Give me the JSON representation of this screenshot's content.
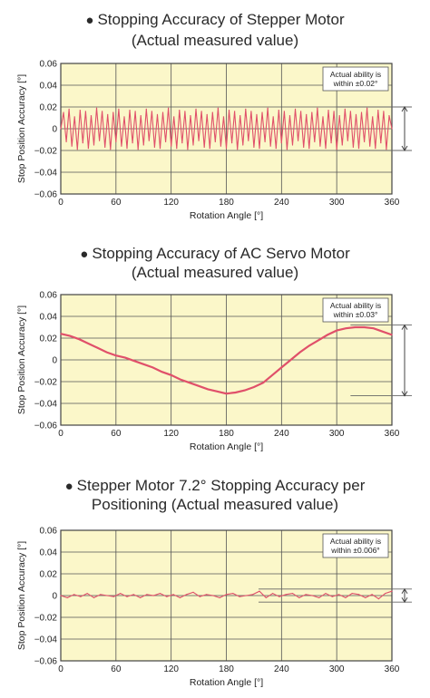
{
  "charts": [
    {
      "title_line1": "Stopping Accuracy of Stepper Motor",
      "title_line2": "(Actual measured value)",
      "annotation_line1": "Actual ability is",
      "annotation_line2": "within ±0.02°"
    },
    {
      "title_line1": "Stopping Accuracy of AC Servo Motor",
      "title_line2": "(Actual measured value)",
      "annotation_line1": "Actual ability is",
      "annotation_line2": "within ±0.03°"
    },
    {
      "title_line1": "Stepper Motor 7.2° Stopping Accuracy per",
      "title_line2": "Positioning (Actual measured value)",
      "annotation_line1": "Actual ability is",
      "annotation_line2": "within ±0.006°"
    }
  ],
  "chart_data": [
    {
      "type": "line",
      "xlabel": "Rotation Angle [°]",
      "ylabel": "Stop Position Accuracy [°]",
      "xlim": [
        0,
        360
      ],
      "ylim": [
        -0.06,
        0.06
      ],
      "xticks": [
        "0",
        "60",
        "120",
        "180",
        "240",
        "300",
        "360"
      ],
      "yticks": [
        "0.06",
        "0.04",
        "0.02",
        "0",
        "−0.02",
        "−0.04",
        "−0.06"
      ],
      "band": [
        -0.02,
        0.02
      ],
      "series": [
        {
          "color": "#e0506a",
          "x": [
            0,
            3,
            6,
            9,
            12,
            15,
            18,
            21,
            24,
            27,
            30,
            33,
            36,
            39,
            42,
            45,
            48,
            51,
            54,
            57,
            60,
            63,
            66,
            69,
            72,
            75,
            78,
            81,
            84,
            87,
            90,
            93,
            96,
            99,
            102,
            105,
            108,
            111,
            114,
            117,
            120,
            123,
            126,
            129,
            132,
            135,
            138,
            141,
            144,
            147,
            150,
            153,
            156,
            159,
            162,
            165,
            168,
            171,
            174,
            177,
            180,
            183,
            186,
            189,
            192,
            195,
            198,
            201,
            204,
            207,
            210,
            213,
            216,
            219,
            222,
            225,
            228,
            231,
            234,
            237,
            240,
            243,
            246,
            249,
            252,
            255,
            258,
            261,
            264,
            267,
            270,
            273,
            276,
            279,
            282,
            285,
            288,
            291,
            294,
            297,
            300,
            303,
            306,
            309,
            312,
            315,
            318,
            321,
            324,
            327,
            330,
            333,
            336,
            339,
            342,
            345,
            348,
            351,
            354,
            357,
            360
          ],
          "y": [
            0.0,
            0.015,
            -0.012,
            0.018,
            -0.016,
            0.011,
            -0.019,
            0.017,
            -0.013,
            0.016,
            -0.018,
            0.012,
            -0.015,
            0.019,
            -0.011,
            0.016,
            -0.017,
            0.013,
            -0.019,
            0.015,
            -0.012,
            0.018,
            -0.016,
            0.011,
            -0.018,
            0.017,
            -0.013,
            0.016,
            -0.019,
            0.012,
            -0.015,
            0.018,
            -0.011,
            0.016,
            -0.017,
            0.013,
            -0.018,
            0.015,
            -0.012,
            0.019,
            -0.016,
            0.011,
            -0.018,
            0.017,
            -0.013,
            0.016,
            -0.019,
            0.012,
            -0.015,
            0.018,
            -0.011,
            0.016,
            -0.017,
            0.013,
            -0.018,
            0.015,
            -0.012,
            0.019,
            -0.016,
            0.011,
            -0.018,
            0.017,
            -0.013,
            0.016,
            -0.019,
            0.012,
            -0.015,
            0.018,
            -0.011,
            0.016,
            -0.017,
            0.013,
            -0.018,
            0.015,
            -0.012,
            0.019,
            -0.016,
            0.011,
            -0.018,
            0.017,
            -0.013,
            0.016,
            -0.019,
            0.012,
            -0.015,
            0.018,
            -0.011,
            0.016,
            -0.017,
            0.013,
            -0.018,
            0.015,
            -0.012,
            0.019,
            -0.016,
            0.011,
            -0.018,
            0.017,
            -0.013,
            0.016,
            -0.019,
            0.012,
            -0.015,
            0.018,
            -0.011,
            0.016,
            -0.017,
            0.013,
            -0.018,
            0.015,
            -0.012,
            0.019,
            -0.016,
            0.011,
            -0.018,
            0.017,
            -0.013,
            0.016,
            -0.019,
            0.012,
            0.0
          ]
        }
      ]
    },
    {
      "type": "line",
      "xlabel": "Rotation Angle [°]",
      "ylabel": "Stop Position Accuracy [°]",
      "xlim": [
        0,
        360
      ],
      "ylim": [
        -0.06,
        0.06
      ],
      "xticks": [
        "0",
        "60",
        "120",
        "180",
        "240",
        "300",
        "360"
      ],
      "yticks": [
        "0.06",
        "0.04",
        "0.02",
        "0",
        "−0.02",
        "−0.04",
        "−0.06"
      ],
      "band": [
        -0.033,
        0.032
      ],
      "series": [
        {
          "color": "#e0506a",
          "x": [
            0,
            10,
            20,
            30,
            40,
            50,
            60,
            70,
            80,
            90,
            100,
            110,
            120,
            130,
            140,
            150,
            160,
            170,
            180,
            190,
            200,
            210,
            220,
            230,
            240,
            250,
            260,
            270,
            280,
            290,
            300,
            310,
            320,
            330,
            340,
            350,
            360
          ],
          "y": [
            0.024,
            0.022,
            0.019,
            0.015,
            0.011,
            0.007,
            0.004,
            0.002,
            -0.001,
            -0.004,
            -0.007,
            -0.011,
            -0.014,
            -0.018,
            -0.021,
            -0.024,
            -0.027,
            -0.029,
            -0.031,
            -0.03,
            -0.028,
            -0.025,
            -0.021,
            -0.014,
            -0.007,
            0.0,
            0.007,
            0.013,
            0.018,
            0.023,
            0.027,
            0.029,
            0.03,
            0.03,
            0.029,
            0.026,
            0.023
          ]
        }
      ]
    },
    {
      "type": "line",
      "xlabel": "Rotation Angle [°]",
      "ylabel": "Stop Position Accuracy [°]",
      "xlim": [
        0,
        360
      ],
      "ylim": [
        -0.06,
        0.06
      ],
      "xticks": [
        "0",
        "60",
        "120",
        "180",
        "240",
        "300",
        "360"
      ],
      "yticks": [
        "0.06",
        "0.04",
        "0.02",
        "0",
        "−0.02",
        "−0.04",
        "−0.06"
      ],
      "band": [
        -0.006,
        0.006
      ],
      "series": [
        {
          "color": "#e0506a",
          "x": [
            0,
            7.2,
            14.4,
            21.6,
            28.8,
            36,
            43.2,
            50.4,
            57.6,
            64.8,
            72,
            79.2,
            86.4,
            93.6,
            100.8,
            108,
            115.2,
            122.4,
            129.6,
            136.8,
            144,
            151.2,
            158.4,
            165.6,
            172.8,
            180,
            187.2,
            194.4,
            201.6,
            208.8,
            216,
            223.2,
            230.4,
            237.6,
            244.8,
            252,
            259.2,
            266.4,
            273.6,
            280.8,
            288,
            295.2,
            302.4,
            309.6,
            316.8,
            324,
            331.2,
            338.4,
            345.6,
            352.8,
            360
          ],
          "y": [
            0,
            -0.002,
            0.001,
            -0.001,
            0.002,
            -0.002,
            0.001,
            0.0,
            -0.001,
            0.002,
            -0.001,
            0.001,
            -0.002,
            0.001,
            0.0,
            0.002,
            -0.001,
            0.001,
            -0.002,
            0.001,
            0.003,
            -0.001,
            0.001,
            0.0,
            -0.002,
            0.001,
            0.002,
            -0.001,
            0.0,
            0.001,
            0.004,
            -0.002,
            0.002,
            -0.001,
            0.001,
            0.002,
            -0.002,
            0.001,
            0.0,
            -0.002,
            0.002,
            -0.001,
            0.001,
            -0.002,
            0.002,
            0.001,
            -0.002,
            0.001,
            -0.003,
            0.002,
            0.004
          ]
        }
      ]
    }
  ]
}
